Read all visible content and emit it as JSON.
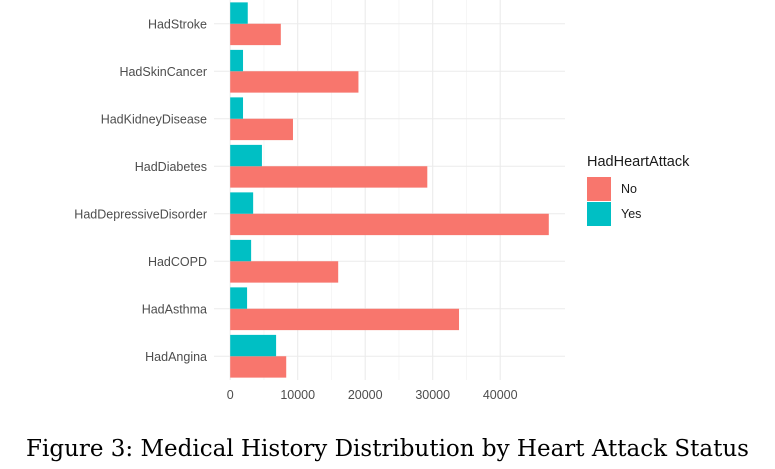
{
  "chart_data": {
    "type": "bar",
    "orientation": "horizontal",
    "categories": [
      "HadAngina",
      "HadAsthma",
      "HadCOPD",
      "HadDepressiveDisorder",
      "HadDiabetes",
      "HadKidneyDisease",
      "HadSkinCancer",
      "HadStroke"
    ],
    "series": [
      {
        "name": "No",
        "color": "#F8766D",
        "values": [
          8300,
          33900,
          16000,
          47200,
          29200,
          9300,
          19000,
          7500
        ]
      },
      {
        "name": "Yes",
        "color": "#00BFC4",
        "values": [
          6800,
          2500,
          3100,
          3400,
          4700,
          1900,
          1900,
          2600
        ]
      }
    ],
    "xticks": [
      0,
      10000,
      20000,
      30000,
      40000
    ],
    "xlim": [
      -2400,
      49600
    ],
    "grid": true,
    "legend": {
      "title": "HadHeartAttack",
      "position": "right",
      "entries": [
        {
          "label": "No",
          "color": "#F8766D"
        },
        {
          "label": "Yes",
          "color": "#00BFC4"
        }
      ]
    },
    "caption": "Figure 3: Medical History Distribution by Heart Attack Status"
  }
}
